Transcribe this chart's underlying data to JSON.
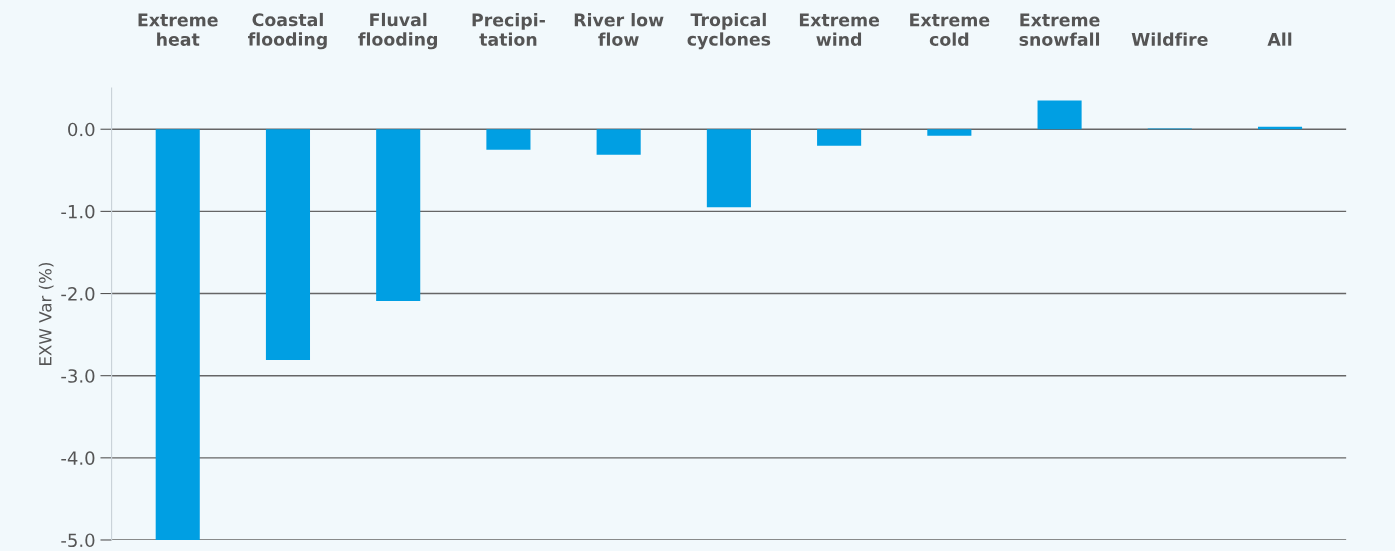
{
  "chart_data": {
    "type": "bar",
    "ylabel": "EXW Var (%)",
    "categories": [
      "Extreme\nheat",
      "Coastal\nflooding",
      "Fluval\nflooding",
      "Precipi-\ntation",
      "River low\nflow",
      "Tropical\ncyclones",
      "Extreme\nwind",
      "Extreme\ncold",
      "Extreme\nsnowfall",
      "Wildfire",
      "All"
    ],
    "values": [
      -5.0,
      -2.81,
      -2.09,
      -0.25,
      -0.31,
      -0.95,
      -0.2,
      -0.08,
      0.35,
      0.01,
      0.03
    ],
    "color": "#009fe3",
    "ylim": [
      -5.0,
      0.5
    ],
    "yticks": [
      {
        "value": 0,
        "label": "0.0"
      },
      {
        "value": -1,
        "label": "-1.0"
      },
      {
        "value": -2,
        "label": "-2.0"
      },
      {
        "value": -3,
        "label": "-3.0"
      },
      {
        "value": -4,
        "label": "-4.0"
      },
      {
        "value": -5,
        "label": "-5.0"
      }
    ],
    "grid": "y"
  }
}
